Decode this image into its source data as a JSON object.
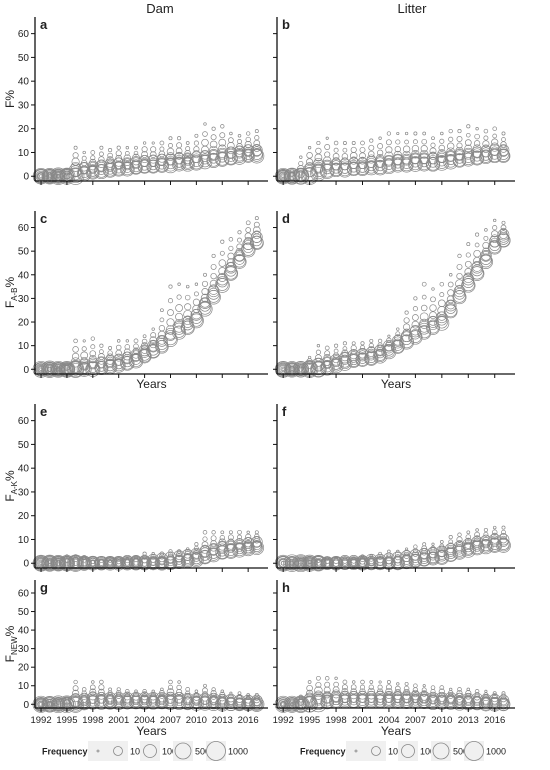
{
  "column_titles": [
    "Dam",
    "Litter"
  ],
  "x_axis": {
    "label": "Years",
    "ticks": [
      1992,
      1995,
      1998,
      2001,
      2004,
      2007,
      2010,
      2013,
      2016
    ],
    "range": [
      1991.3,
      2018.3
    ]
  },
  "y_axis": {
    "ticks": [
      0,
      10,
      20,
      30,
      40,
      50,
      60
    ],
    "range": [
      -2,
      67
    ]
  },
  "rows": [
    {
      "ylabel": "F%",
      "ylabel_main": "F",
      "ylabel_sub": "",
      "ylabel_suffix": "%"
    },
    {
      "ylabel": "FA-B%",
      "ylabel_main": "F",
      "ylabel_sub": "A-B",
      "ylabel_suffix": "%"
    },
    {
      "ylabel": "FA-K%",
      "ylabel_main": "F",
      "ylabel_sub": "A-K",
      "ylabel_suffix": "%"
    },
    {
      "ylabel": "FNEW%",
      "ylabel_main": "F",
      "ylabel_sub": "NEW",
      "ylabel_suffix": "%"
    }
  ],
  "legend": {
    "title": "Frequency",
    "entries": [
      "1",
      "10",
      "100",
      "500",
      "1000"
    ],
    "values": [
      1,
      10,
      100,
      500,
      1000
    ]
  },
  "chart_data": [
    {
      "type": "scatter",
      "panel": "a",
      "column": "Dam",
      "ylabel": "F%",
      "x": [
        1992,
        1993,
        1994,
        1995,
        1996,
        1997,
        1998,
        1999,
        2000,
        2001,
        2002,
        2003,
        2004,
        2005,
        2006,
        2007,
        2008,
        2009,
        2010,
        2011,
        2012,
        2013,
        2014,
        2015,
        2016,
        2017
      ],
      "mean": [
        0,
        0,
        0,
        0.5,
        2.5,
        3.5,
        4,
        4.5,
        5,
        5.5,
        5.5,
        6,
        6.5,
        6.5,
        7,
        7,
        7.5,
        7.5,
        8,
        8.5,
        9,
        9.5,
        10,
        10.5,
        11,
        11
      ],
      "max": [
        0,
        0,
        0,
        1,
        12,
        10,
        10,
        12,
        11,
        12,
        12,
        12,
        14,
        14,
        14,
        16,
        16,
        14,
        17,
        22,
        20,
        21,
        18,
        17,
        18,
        19
      ],
      "ylim": [
        -2,
        67
      ],
      "xlim": [
        1991.3,
        2018.3
      ]
    },
    {
      "type": "scatter",
      "panel": "b",
      "column": "Litter",
      "ylabel": "F%",
      "x": [
        1992,
        1993,
        1994,
        1995,
        1996,
        1997,
        1998,
        1999,
        2000,
        2001,
        2002,
        2003,
        2004,
        2005,
        2006,
        2007,
        2008,
        2009,
        2010,
        2011,
        2012,
        2013,
        2014,
        2015,
        2016,
        2017
      ],
      "mean": [
        0,
        0,
        0.5,
        2.5,
        4,
        4.5,
        5,
        5,
        5.5,
        5.5,
        6,
        6,
        6.5,
        7,
        7,
        7.5,
        7.5,
        7.5,
        8,
        8.5,
        9,
        9.5,
        10,
        10.5,
        11,
        11
      ],
      "max": [
        0,
        2,
        8,
        12,
        14,
        16,
        14,
        14,
        14,
        14,
        15,
        16,
        18,
        18,
        18,
        18,
        18,
        16,
        18,
        19,
        19,
        21,
        20,
        19,
        20,
        18
      ],
      "ylim": [
        -2,
        67
      ],
      "xlim": [
        1991.3,
        2018.3
      ]
    },
    {
      "type": "scatter",
      "panel": "c",
      "column": "Dam",
      "ylabel": "FA-B%",
      "x": [
        1992,
        1993,
        1994,
        1995,
        1996,
        1997,
        1998,
        1999,
        2000,
        2001,
        2002,
        2003,
        2004,
        2005,
        2006,
        2007,
        2008,
        2009,
        2010,
        2011,
        2012,
        2013,
        2014,
        2015,
        2016,
        2017
      ],
      "mean": [
        0,
        0,
        0,
        0,
        1,
        2,
        2.5,
        3,
        3.5,
        4,
        5,
        6,
        8,
        10,
        12,
        15,
        18,
        20,
        23,
        28,
        33,
        38,
        43,
        48,
        53,
        56
      ],
      "max": [
        0,
        0,
        0,
        2,
        12,
        12,
        13,
        10,
        9,
        12,
        12,
        12,
        14,
        17,
        25,
        35,
        36,
        35,
        36,
        40,
        48,
        54,
        55,
        58,
        62,
        64
      ],
      "ylim": [
        -2,
        67
      ],
      "xlim": [
        1991.3,
        2018.3
      ]
    },
    {
      "type": "scatter",
      "panel": "d",
      "column": "Litter",
      "ylabel": "FA-B%",
      "x": [
        1992,
        1993,
        1994,
        1995,
        1996,
        1997,
        1998,
        1999,
        2000,
        2001,
        2002,
        2003,
        2004,
        2005,
        2006,
        2007,
        2008,
        2009,
        2010,
        2011,
        2012,
        2013,
        2014,
        2015,
        2016,
        2017
      ],
      "mean": [
        0,
        0,
        0,
        1,
        2,
        3,
        4,
        5,
        6,
        6.5,
        7,
        8,
        10,
        12,
        14,
        16,
        18,
        20,
        22,
        27,
        33,
        38,
        43,
        48,
        54,
        57
      ],
      "max": [
        0,
        0,
        1,
        5,
        10,
        9,
        10,
        11,
        11,
        11,
        12,
        12,
        14,
        17,
        24,
        30,
        36,
        34,
        36,
        40,
        48,
        53,
        57,
        59,
        63,
        62
      ],
      "ylim": [
        -2,
        67
      ],
      "xlim": [
        1991.3,
        2018.3
      ]
    },
    {
      "type": "scatter",
      "panel": "e",
      "column": "Dam",
      "ylabel": "FA-K%",
      "x": [
        1992,
        1993,
        1994,
        1995,
        1996,
        1997,
        1998,
        1999,
        2000,
        2001,
        2002,
        2003,
        2004,
        2005,
        2006,
        2007,
        2008,
        2009,
        2010,
        2011,
        2012,
        2013,
        2014,
        2015,
        2016,
        2017
      ],
      "mean": [
        0,
        0,
        0,
        0,
        0.5,
        0.5,
        0.5,
        0.5,
        0.5,
        0.5,
        1,
        1,
        1,
        1.5,
        2,
        2.5,
        3,
        3.5,
        4,
        5,
        6,
        7,
        7.5,
        8,
        8.5,
        9
      ],
      "max": [
        0,
        0.5,
        1,
        3,
        3,
        2.5,
        0.5,
        1,
        1,
        1.5,
        2,
        2.5,
        4,
        4,
        4,
        5,
        5,
        6,
        8,
        13,
        13,
        13,
        13,
        13,
        13,
        13
      ],
      "ylim": [
        -2,
        67
      ],
      "xlim": [
        1991.3,
        2018.3
      ]
    },
    {
      "type": "scatter",
      "panel": "f",
      "column": "Litter",
      "ylabel": "FA-K%",
      "x": [
        1992,
        1993,
        1994,
        1995,
        1996,
        1997,
        1998,
        1999,
        2000,
        2001,
        2002,
        2003,
        2004,
        2005,
        2006,
        2007,
        2008,
        2009,
        2010,
        2011,
        2012,
        2013,
        2014,
        2015,
        2016,
        2017
      ],
      "mean": [
        0,
        0,
        0,
        0,
        0.5,
        0.5,
        0.5,
        1,
        1,
        1,
        1.5,
        1.5,
        2,
        2.5,
        3,
        3.5,
        4,
        4.5,
        5,
        6,
        7,
        8,
        9,
        9.5,
        10,
        10
      ],
      "max": [
        0,
        0,
        0.5,
        0.5,
        1,
        2,
        2,
        2,
        2,
        3,
        3,
        4,
        5,
        5,
        6,
        7,
        8,
        8,
        9,
        11,
        12,
        13,
        14,
        14,
        15,
        15
      ],
      "ylim": [
        -2,
        67
      ],
      "xlim": [
        1991.3,
        2018.3
      ]
    },
    {
      "type": "scatter",
      "panel": "g",
      "column": "Dam",
      "ylabel": "FNEW%",
      "x": [
        1992,
        1993,
        1994,
        1995,
        1996,
        1997,
        1998,
        1999,
        2000,
        2001,
        2002,
        2003,
        2004,
        2005,
        2006,
        2007,
        2008,
        2009,
        2010,
        2011,
        2012,
        2013,
        2014,
        2015,
        2016,
        2017
      ],
      "mean": [
        0,
        0,
        0,
        0.5,
        2,
        3,
        3.5,
        3.5,
        3.5,
        3.5,
        3.5,
        3.5,
        3.5,
        3.5,
        3.5,
        3.5,
        3.5,
        3,
        3,
        3,
        3,
        2.5,
        2.5,
        2,
        2,
        2
      ],
      "max": [
        0,
        0,
        1,
        3,
        12,
        8,
        12,
        12,
        8,
        8,
        7,
        7,
        7,
        7,
        8,
        12,
        12,
        8,
        7,
        10,
        8,
        7,
        6,
        6,
        5,
        5
      ],
      "ylim": [
        -2,
        67
      ],
      "xlim": [
        1991.3,
        2018.3
      ]
    },
    {
      "type": "scatter",
      "panel": "h",
      "column": "Litter",
      "ylabel": "FNEW%",
      "x": [
        1992,
        1993,
        1994,
        1995,
        1996,
        1997,
        1998,
        1999,
        2000,
        2001,
        2002,
        2003,
        2004,
        2005,
        2006,
        2007,
        2008,
        2009,
        2010,
        2011,
        2012,
        2013,
        2014,
        2015,
        2016,
        2017
      ],
      "mean": [
        0,
        0,
        0.5,
        2,
        3,
        3.5,
        4,
        4,
        4,
        4,
        4,
        4,
        4,
        4,
        4,
        4,
        4,
        3.5,
        3.5,
        3.5,
        3,
        3,
        3,
        2.5,
        2.5,
        2
      ],
      "max": [
        0,
        0,
        4,
        12,
        14,
        14,
        14,
        12,
        12,
        12,
        12,
        12,
        12,
        11,
        11,
        10,
        10,
        9,
        9,
        8,
        8,
        8,
        7,
        7,
        6,
        6
      ],
      "ylim": [
        -2,
        67
      ],
      "xlim": [
        1991.3,
        2018.3
      ]
    }
  ]
}
